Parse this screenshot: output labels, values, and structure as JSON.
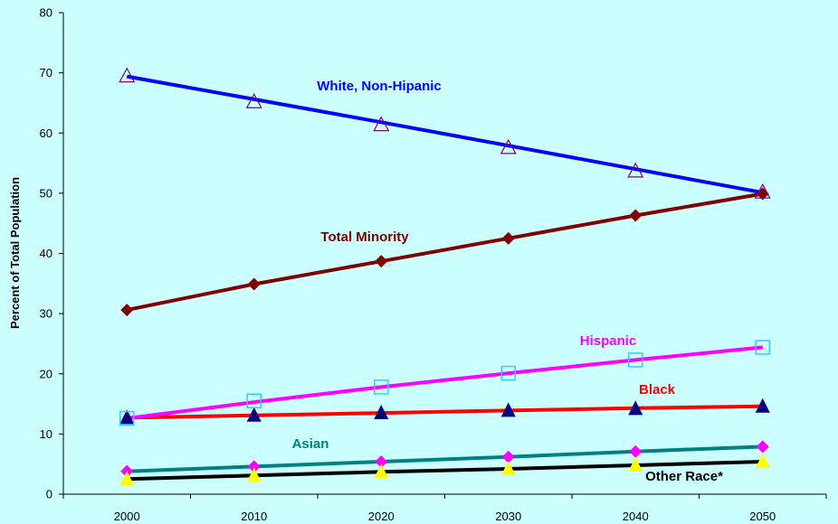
{
  "chart_data": {
    "type": "line",
    "title": "",
    "xlabel": "",
    "ylabel": "Percent of Total Population",
    "x": [
      2000,
      2010,
      2020,
      2030,
      2040,
      2050
    ],
    "x_tick_labels": [
      "2000",
      "2010",
      "2020",
      "2030",
      "2040",
      "2050"
    ],
    "ylim": [
      0,
      80
    ],
    "y_ticks": [
      0,
      10,
      20,
      30,
      40,
      50,
      60,
      70,
      80
    ],
    "grid": false,
    "legend": "none (series labeled inline)",
    "background": "#ccffff",
    "series": [
      {
        "name": "White, Non-Hipanic",
        "fit_values": [
          69.4,
          65.6,
          61.8,
          57.9,
          54.0,
          50.1
        ],
        "marker_values": [
          69.4,
          65.1,
          61.3,
          57.5,
          53.6,
          50.1
        ],
        "line_color": "#0000ff",
        "marker": "open-triangle",
        "marker_color": "#800080",
        "label_color": "#0000ff"
      },
      {
        "name": "Total Minority",
        "fit_values": [
          30.6,
          34.9,
          38.7,
          42.5,
          46.3,
          49.9
        ],
        "marker_values": [
          30.6,
          34.9,
          38.7,
          42.5,
          46.3,
          49.9
        ],
        "line_color": "#800000",
        "marker": "filled-diamond",
        "marker_color": "#800000",
        "label_color": "#800000"
      },
      {
        "name": "Hispanic",
        "fit_values": [
          12.6,
          15.3,
          17.8,
          20.1,
          22.3,
          24.4
        ],
        "marker_values": [
          12.6,
          15.5,
          17.8,
          20.1,
          22.3,
          24.4
        ],
        "line_color": "#ff00ff",
        "marker": "open-square",
        "marker_color": "#33ccff",
        "label_color": "#ff00ff"
      },
      {
        "name": "Black",
        "fit_values": [
          12.7,
          13.1,
          13.5,
          13.9,
          14.3,
          14.6
        ],
        "marker_values": [
          12.7,
          13.1,
          13.5,
          13.9,
          14.2,
          14.6
        ],
        "line_color": "#ff0000",
        "marker": "filled-triangle",
        "marker_color": "#000080",
        "label_color": "#ff0000"
      },
      {
        "name": "Asian",
        "fit_values": [
          3.8,
          4.6,
          5.4,
          6.2,
          7.1,
          7.9
        ],
        "marker_values": [
          3.8,
          4.6,
          5.4,
          6.2,
          7.1,
          7.9
        ],
        "line_color": "#008080",
        "marker": "filled-diamond",
        "marker_color": "#ff00ff",
        "label_color": "#008080"
      },
      {
        "name": "Other Race*",
        "fit_values": [
          2.5,
          3.1,
          3.7,
          4.2,
          4.8,
          5.4
        ],
        "marker_values": [
          2.5,
          3.1,
          3.7,
          4.2,
          4.8,
          5.4
        ],
        "line_color": "#000000",
        "marker": "filled-triangle",
        "marker_color": "#ffff00",
        "label_color": "#000000"
      }
    ]
  }
}
